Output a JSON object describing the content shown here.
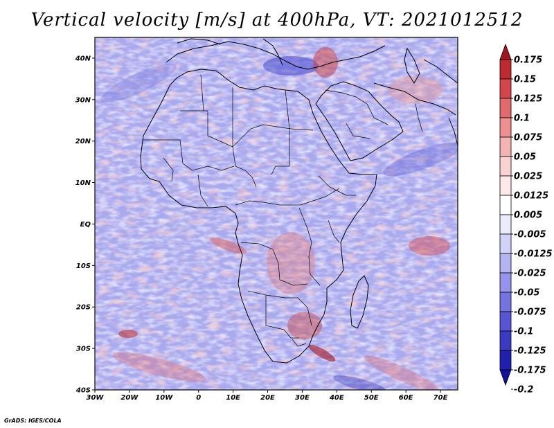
{
  "title": "Vertical velocity [m/s] at 400hPa, VT: 2021012512",
  "credit": "GrADS: IGES/COLA",
  "map": {
    "region": "Africa",
    "lon_range": [
      -30,
      75
    ],
    "lat_range": [
      -40,
      45
    ],
    "lat_ticks": [
      {
        "value": 40,
        "label": "40N"
      },
      {
        "value": 30,
        "label": "30N"
      },
      {
        "value": 20,
        "label": "20N"
      },
      {
        "value": 10,
        "label": "10N"
      },
      {
        "value": 0,
        "label": "EQ"
      },
      {
        "value": -10,
        "label": "10S"
      },
      {
        "value": -20,
        "label": "20S"
      },
      {
        "value": -30,
        "label": "30S"
      },
      {
        "value": -40,
        "label": "40S"
      }
    ],
    "lon_ticks": [
      {
        "value": -30,
        "label": "30W"
      },
      {
        "value": -20,
        "label": "20W"
      },
      {
        "value": -10,
        "label": "10W"
      },
      {
        "value": 0,
        "label": "0"
      },
      {
        "value": 10,
        "label": "10E"
      },
      {
        "value": 20,
        "label": "20E"
      },
      {
        "value": 30,
        "label": "30E"
      },
      {
        "value": 40,
        "label": "40E"
      },
      {
        "value": 50,
        "label": "50E"
      },
      {
        "value": 60,
        "label": "60E"
      },
      {
        "value": 70,
        "label": "70E"
      }
    ]
  },
  "colorbar": {
    "labels": [
      "0.175",
      "0.15",
      "0.125",
      "0.1",
      "0.075",
      "0.05",
      "0.025",
      "0.0125",
      "0.005",
      "-0.005",
      "-0.0125",
      "-0.025",
      "-0.05",
      "-0.075",
      "-0.1",
      "-0.125",
      "-0.175",
      "-0.2"
    ],
    "colors": [
      "#a0141e",
      "#be2a2e",
      "#d4464a",
      "#e36a6c",
      "#ee9090",
      "#f5b4b4",
      "#fad2d2",
      "#fde9e9",
      "#ffffff",
      "#ebebfc",
      "#d2d2f8",
      "#b4b4f2",
      "#9494ea",
      "#7474e0",
      "#5656d4",
      "#3a3ac4",
      "#2020b0",
      "#12129a"
    ]
  }
}
